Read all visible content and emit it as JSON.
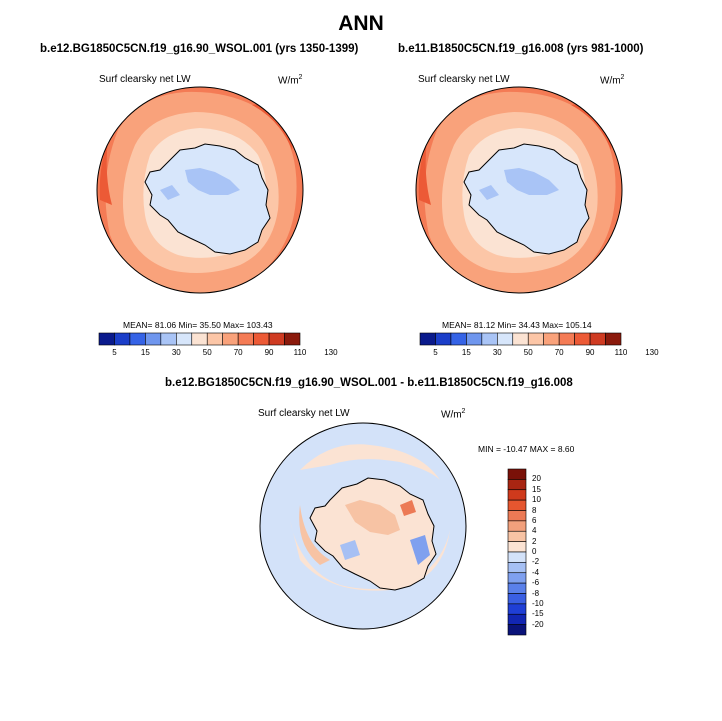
{
  "main_title": "ANN",
  "panels": [
    {
      "title": "b.e12.BG1850C5CN.f19_g16.90_WSOL.001 (yrs 1350-1399)",
      "variable": "Surf clearsky net LW",
      "units": "W/m",
      "units_sup": "2",
      "stats": "MEAN=  81.06  Min=  35.50  Max=  103.43",
      "colorbar_labels": [
        "5",
        "15",
        "30",
        "50",
        "70",
        "90",
        "110",
        "130"
      ]
    },
    {
      "title": "b.e11.B1850C5CN.f19_g16.008 (yrs 981-1000)",
      "variable": "Surf clearsky net LW",
      "units": "W/m",
      "units_sup": "2",
      "stats": "MEAN=  81.12  Min=  34.43  Max=  105.14",
      "colorbar_labels": [
        "5",
        "15",
        "30",
        "50",
        "70",
        "90",
        "110",
        "130"
      ]
    },
    {
      "title": "b.e12.BG1850C5CN.f19_g16.90_WSOL.001 - b.e11.B1850C5CN.f19_g16.008",
      "variable": "Surf clearsky net LW",
      "units": "W/m",
      "units_sup": "2",
      "stats": "MIN = -10.47 MAX =   8.60",
      "colorbar_labels": [
        "20",
        "15",
        "10",
        "8",
        "6",
        "4",
        "2",
        "0",
        "-2",
        "-4",
        "-6",
        "-8",
        "-10",
        "-15",
        "-20"
      ]
    }
  ],
  "chart_data": [
    {
      "type": "heatmap",
      "title": "b.e12.BG1850C5CN.f19_g16.90_WSOL.001 (yrs 1350-1399)",
      "variable": "Surf clearsky net LW",
      "units": "W/m2",
      "projection": "south-polar stereographic",
      "levels": [
        5,
        15,
        30,
        50,
        70,
        90,
        110,
        130
      ],
      "colors": [
        "#0a1a8c",
        "#1b3ec9",
        "#3563e6",
        "#6f96ee",
        "#a9c4f6",
        "#d7e6fb",
        "#fbe3d3",
        "#fcc6a7",
        "#f9a27b",
        "#f47b55",
        "#ec5a36",
        "#cf3b22",
        "#8b1a0c"
      ],
      "mean": 81.06,
      "min": 35.5,
      "max": 103.43
    },
    {
      "type": "heatmap",
      "title": "b.e11.B1850C5CN.f19_g16.008 (yrs 981-1000)",
      "variable": "Surf clearsky net LW",
      "units": "W/m2",
      "projection": "south-polar stereographic",
      "levels": [
        5,
        15,
        30,
        50,
        70,
        90,
        110,
        130
      ],
      "colors": [
        "#0a1a8c",
        "#1b3ec9",
        "#3563e6",
        "#6f96ee",
        "#a9c4f6",
        "#d7e6fb",
        "#fbe3d3",
        "#fcc6a7",
        "#f9a27b",
        "#f47b55",
        "#ec5a36",
        "#cf3b22",
        "#8b1a0c"
      ],
      "mean": 81.12,
      "min": 34.43,
      "max": 105.14
    },
    {
      "type": "heatmap",
      "title": "b.e12.BG1850C5CN.f19_g16.90_WSOL.001 - b.e11.B1850C5CN.f19_g16.008",
      "variable": "Surf clearsky net LW",
      "units": "W/m2",
      "projection": "south-polar stereographic",
      "levels": [
        -20,
        -15,
        -10,
        -8,
        -6,
        -4,
        -2,
        0,
        2,
        4,
        6,
        8,
        10,
        15,
        20
      ],
      "colors": [
        "#0a137a",
        "#1226b3",
        "#1f3fd6",
        "#3a5fe3",
        "#5a80ea",
        "#7fa0ef",
        "#a6c0f4",
        "#d3e2f9",
        "#fbe3d3",
        "#f7c3a4",
        "#f2a07c",
        "#ec7a55",
        "#e5562f",
        "#cf3a1c",
        "#a82512",
        "#7a1108"
      ],
      "min": -10.47,
      "max": 8.6
    }
  ]
}
